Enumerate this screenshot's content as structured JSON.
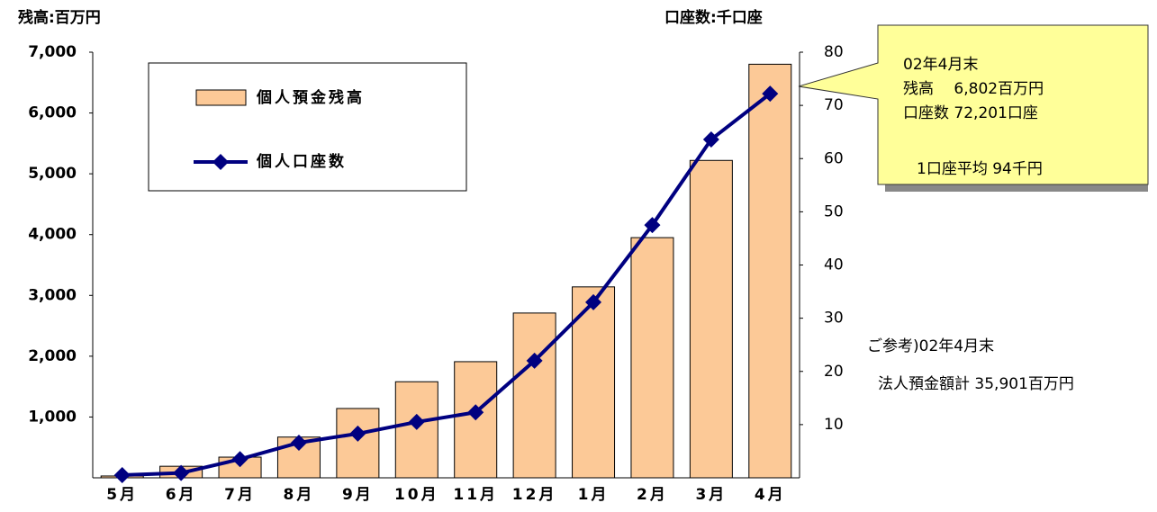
{
  "chart_data": {
    "type": "bar_line",
    "y_axis_label": "残高:百万円",
    "y2_axis_label": "口座数:千口座",
    "categories": [
      "5月",
      "6月",
      "7月",
      "8月",
      "9月",
      "10月",
      "11月",
      "12月",
      "1月",
      "2月",
      "3月",
      "4月"
    ],
    "series": [
      {
        "name": "個人預金残高",
        "color": "#fcc997",
        "values": [
          30,
          190,
          340,
          670,
          1140,
          1580,
          1910,
          2710,
          3140,
          3950,
          5220,
          6802
        ]
      },
      {
        "name": "個人口座数",
        "color": "#000080",
        "axis": "y2",
        "values": [
          0.5,
          0.9,
          3.5,
          6.6,
          8.3,
          10.5,
          12.3,
          22,
          33,
          47.5,
          63.6,
          72.2
        ]
      }
    ],
    "ylim": [
      0,
      7000
    ],
    "yticks": [
      {
        "value": 1000,
        "label": "1,000"
      },
      {
        "value": 2000,
        "label": "2,000"
      },
      {
        "value": 3000,
        "label": "3,000"
      },
      {
        "value": 4000,
        "label": "4,000"
      },
      {
        "value": 5000,
        "label": "5,000"
      },
      {
        "value": 6000,
        "label": "6,000"
      },
      {
        "value": 7000,
        "label": "7,000"
      }
    ],
    "y2lim": [
      0,
      80
    ],
    "y2ticks": [
      10,
      20,
      30,
      40,
      50,
      60,
      70,
      80
    ],
    "callout": [
      "02年4月末",
      "残高　 6,802百万円",
      "口座数  72,201口座",
      "1口座平均  94千円"
    ],
    "note": [
      "ご参考)02年4月末",
      "法人預金額計  35,901百万円"
    ]
  }
}
